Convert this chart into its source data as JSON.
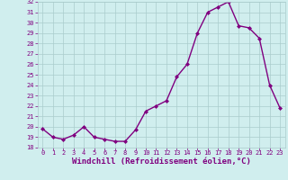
{
  "x": [
    0,
    1,
    2,
    3,
    4,
    5,
    6,
    7,
    8,
    9,
    10,
    11,
    12,
    13,
    14,
    15,
    16,
    17,
    18,
    19,
    20,
    21,
    22,
    23
  ],
  "y": [
    19.8,
    19.0,
    18.8,
    19.2,
    20.0,
    19.0,
    18.8,
    18.6,
    18.6,
    19.7,
    21.5,
    22.0,
    22.5,
    24.8,
    26.0,
    29.0,
    31.0,
    31.5,
    32.0,
    29.7,
    29.5,
    28.5,
    24.0,
    21.8
  ],
  "line_color": "#800080",
  "marker": "D",
  "marker_size": 2,
  "line_width": 1.0,
  "bg_color": "#d0eeee",
  "grid_color": "#aacccc",
  "tick_color": "#800080",
  "label_color": "#800080",
  "xlabel": "Windchill (Refroidissement éolien,°C)",
  "ylim": [
    18,
    32
  ],
  "xlim": [
    -0.5,
    23.5
  ],
  "yticks": [
    18,
    19,
    20,
    21,
    22,
    23,
    24,
    25,
    26,
    27,
    28,
    29,
    30,
    31,
    32
  ],
  "xticks": [
    0,
    1,
    2,
    3,
    4,
    5,
    6,
    7,
    8,
    9,
    10,
    11,
    12,
    13,
    14,
    15,
    16,
    17,
    18,
    19,
    20,
    21,
    22,
    23
  ],
  "font_size": 5.0,
  "xlabel_font_size": 6.5
}
